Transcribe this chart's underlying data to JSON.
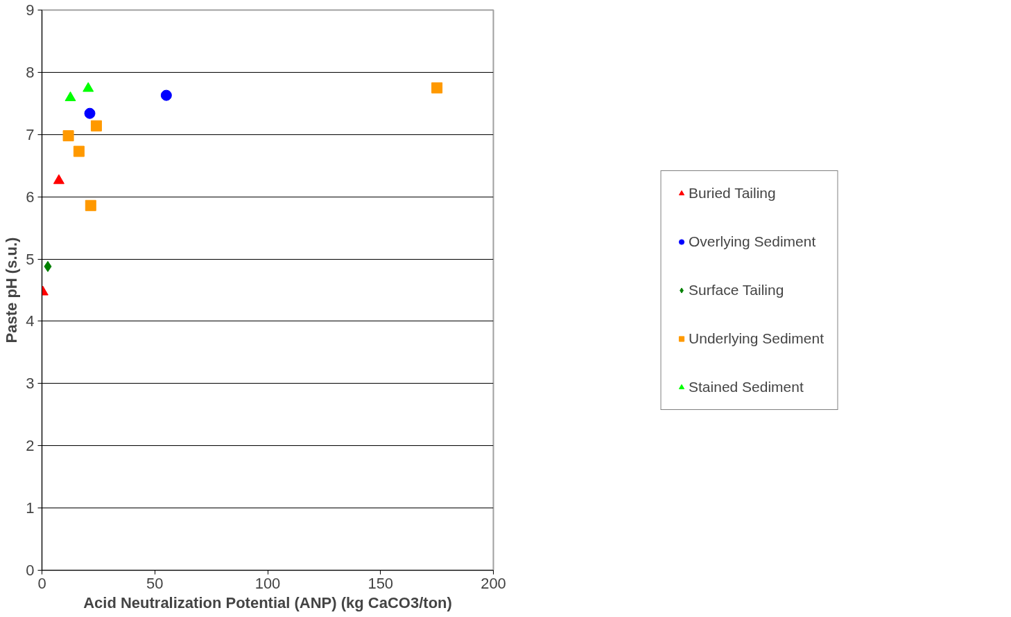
{
  "chart_data": {
    "type": "scatter",
    "xlabel": "Acid Neutralization Potential (ANP) (kg CaCO3/ton)",
    "ylabel": "Paste pH (s.u.)",
    "xlim": [
      0,
      200
    ],
    "xticks": [
      0,
      50,
      100,
      150,
      200
    ],
    "ylim": [
      0,
      9
    ],
    "yticks": [
      0,
      1,
      2,
      3,
      4,
      5,
      6,
      7,
      8,
      9
    ],
    "grid": "y",
    "legend": "right",
    "series": [
      {
        "name": "Buried Tailing",
        "color": "#ff0000",
        "marker": "triangle",
        "x": [
          0.4,
          7.5
        ],
        "values": [
          4.47,
          6.26
        ]
      },
      {
        "name": "Overlying Sediment",
        "color": "#0000ff",
        "marker": "circle",
        "x": [
          21.2,
          55.1
        ],
        "values": [
          7.34,
          7.63
        ]
      },
      {
        "name": "Surface Tailing",
        "color": "#008000",
        "marker": "diamond",
        "x": [
          2.6
        ],
        "values": [
          4.88
        ]
      },
      {
        "name": "Underlying Sediment",
        "color": "#ff9900",
        "marker": "square",
        "x": [
          11.7,
          16.4,
          24.1,
          21.6,
          175.0
        ],
        "values": [
          6.98,
          6.73,
          7.14,
          5.86,
          7.75
        ]
      },
      {
        "name": "Stained Sediment",
        "color": "#00ff00",
        "marker": "triangle",
        "x": [
          12.6,
          20.5
        ],
        "values": [
          7.59,
          7.74
        ]
      }
    ]
  }
}
